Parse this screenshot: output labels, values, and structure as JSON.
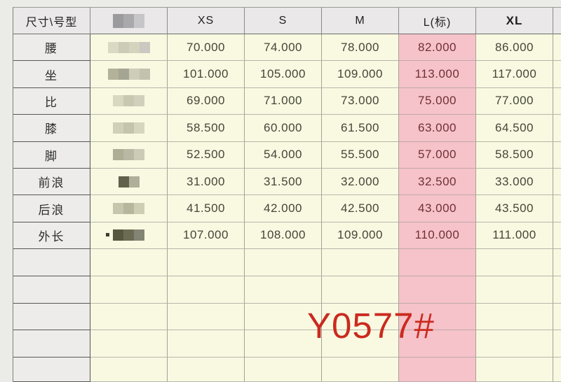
{
  "annotation": {
    "style_number": "Y0577#",
    "color": "#cb2a1f"
  },
  "table": {
    "corner_header": "尺寸\\号型",
    "size_headers": [
      "XS",
      "S",
      "M",
      "L(标)",
      "XL"
    ],
    "highlight_column": "L(标)",
    "redacted_header_blocks": [
      "#9b9b9d",
      "#a9a9ab",
      "#c6c6c8"
    ],
    "rows": [
      {
        "label": "腰",
        "values": [
          "70.000",
          "74.000",
          "78.000",
          "82.000",
          "86.000"
        ],
        "redacted_blocks": [
          "#dadac4",
          "#ccccb6",
          "#d4d4be",
          "#c9c9c2"
        ]
      },
      {
        "label": "坐",
        "values": [
          "101.000",
          "105.000",
          "109.000",
          "113.000",
          "117.000"
        ],
        "redacted_blocks": [
          "#b2b29a",
          "#a5a594",
          "#cdcdb9",
          "#c2c2ae"
        ]
      },
      {
        "label": "比",
        "values": [
          "69.000",
          "71.000",
          "73.000",
          "75.000",
          "77.000"
        ],
        "redacted_blocks": [
          "#d8d8c0",
          "#c8c8b0",
          "#d0d0bc"
        ]
      },
      {
        "label": "膝",
        "values": [
          "58.500",
          "60.000",
          "61.500",
          "63.000",
          "64.500"
        ],
        "redacted_blocks": [
          "#d0d0b8",
          "#c4c4ac",
          "#d6d6c0"
        ]
      },
      {
        "label": "脚",
        "values": [
          "52.500",
          "54.000",
          "55.500",
          "57.000",
          "58.500"
        ],
        "redacted_blocks": [
          "#aeae94",
          "#b8b8a4",
          "#ccccb6"
        ]
      },
      {
        "label": "前浪",
        "values": [
          "31.000",
          "31.500",
          "32.000",
          "32.500",
          "33.000"
        ],
        "redacted_blocks": [
          "#62624c",
          "#b0b09a"
        ]
      },
      {
        "label": "后浪",
        "values": [
          "41.500",
          "42.000",
          "42.500",
          "43.000",
          "43.500"
        ],
        "redacted_blocks": [
          "#c6c6ac",
          "#b6b69c",
          "#ceceb4"
        ]
      },
      {
        "label": "外长",
        "values": [
          "107.000",
          "108.000",
          "109.000",
          "110.000",
          "111.000"
        ],
        "redacted_blocks": [
          "#57573f",
          "#6b6b55",
          "#848474"
        ],
        "speck": true
      }
    ],
    "empty_row_count": 5,
    "colors": {
      "cell_yellow": "#f9f9e1",
      "cell_pink": "#f5c3c9",
      "header_grey": "#eae8e8",
      "number_text": "#45453a",
      "highlight_text": "#722f37"
    }
  }
}
